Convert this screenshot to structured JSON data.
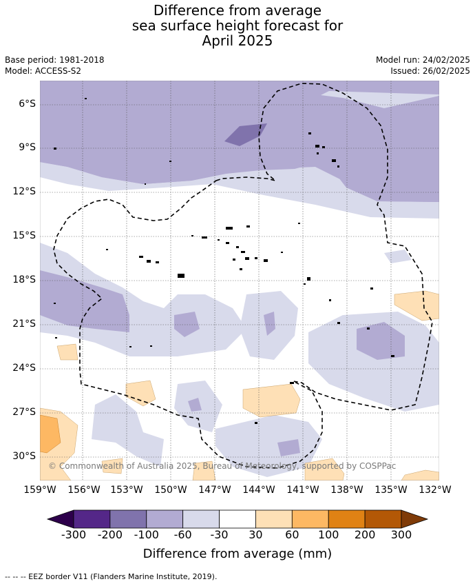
{
  "title": {
    "line1": "Difference from average",
    "line2": "sea surface height forecast for",
    "line3": "April 2025"
  },
  "meta": {
    "base_period": "Base period: 1981-2018",
    "model": "Model: ACCESS-S2",
    "model_run": "Model run: 24/02/2025",
    "issued": "Issued: 26/02/2025"
  },
  "axes": {
    "lat_labels": [
      "6°S",
      "9°S",
      "12°S",
      "15°S",
      "18°S",
      "21°S",
      "24°S",
      "27°S",
      "30°S"
    ],
    "lon_labels": [
      "159°W",
      "156°W",
      "153°W",
      "150°W",
      "147°W",
      "144°W",
      "141°W",
      "138°W",
      "135°W",
      "132°W"
    ],
    "grid": true
  },
  "copyright": "© Commonwealth of Australia 2025, Bureau of Meteorology, supported by COSPPac",
  "colorbar": {
    "title": "Difference from average (mm)",
    "ticks": [
      "-300",
      "-200",
      "-100",
      "-60",
      "-30",
      "30",
      "60",
      "100",
      "200",
      "300"
    ],
    "colors": [
      "#2d004b",
      "#542788",
      "#8073ac",
      "#b2abd2",
      "#d8daeb",
      "#ffffff",
      "#fee0b6",
      "#fdb863",
      "#e08214",
      "#b35806",
      "#7f3b08"
    ]
  },
  "footnote": "--  --  -- EEZ border V11 (Flanders Marine Institute, 2019)."
}
